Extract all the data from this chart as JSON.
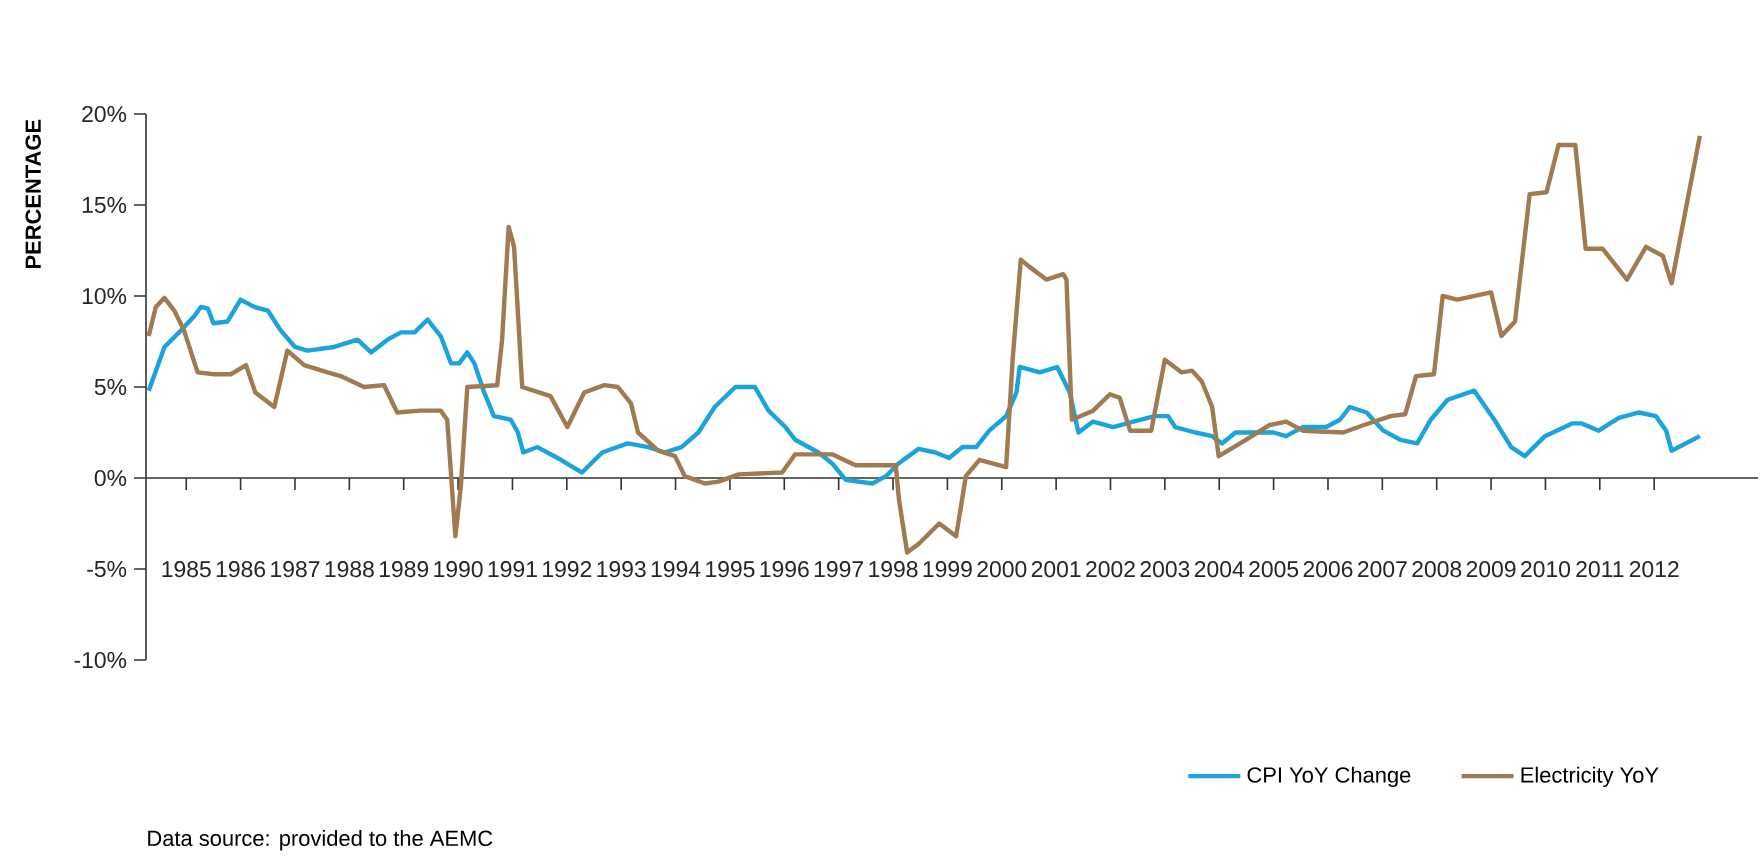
{
  "chart_data": {
    "type": "line",
    "ylabel": "PERCENTAGE",
    "xlim": [
      1984.26,
      2013.91
    ],
    "xticks": [
      1985,
      1986,
      1987,
      1988,
      1989,
      1990,
      1991,
      1992,
      1993,
      1994,
      1995,
      1996,
      1997,
      1998,
      1999,
      2000,
      2001,
      2002,
      2003,
      2004,
      2005,
      2006,
      2007,
      2008,
      2009,
      2010,
      2011,
      2012
    ],
    "ylim": [
      -10,
      20
    ],
    "yticks": [
      {
        "value": -10,
        "label": "-10%"
      },
      {
        "value": -5,
        "label": "-5%"
      },
      {
        "value": 0,
        "label": "0%"
      },
      {
        "value": 5,
        "label": "5%"
      },
      {
        "value": 10,
        "label": "10%"
      },
      {
        "value": 15,
        "label": "15%"
      },
      {
        "value": 20,
        "label": "20%"
      }
    ],
    "legend": "bottom right",
    "annotations": [
      "Data source: provided to the AEMC"
    ],
    "series": [
      {
        "name": "CPI YoY Change",
        "color": "#1ba3dc",
        "x": [
          1984.31,
          1984.6,
          1984.9,
          1985.15,
          1985.27,
          1985.4,
          1985.5,
          1985.76,
          1986.0,
          1986.25,
          1986.5,
          1986.74,
          1987.0,
          1987.23,
          1987.72,
          1988.15,
          1988.4,
          1988.7,
          1988.95,
          1989.2,
          1989.44,
          1989.68,
          1989.87,
          1990.02,
          1990.17,
          1990.3,
          1990.48,
          1990.66,
          1990.97,
          1991.1,
          1991.2,
          1991.46,
          1991.89,
          1992.28,
          1992.65,
          1993.12,
          1993.5,
          1993.8,
          1994.11,
          1994.42,
          1994.72,
          1995.1,
          1995.46,
          1995.71,
          1996.02,
          1996.2,
          1996.63,
          1996.88,
          1997.13,
          1997.62,
          1997.87,
          1998.1,
          1998.47,
          1998.78,
          1999.03,
          1999.28,
          1999.53,
          1999.77,
          2000.08,
          2000.27,
          2000.33,
          2000.7,
          2001.02,
          2001.25,
          2001.41,
          2001.68,
          2002.05,
          2002.42,
          2002.81,
          2003.06,
          2003.19,
          2003.56,
          2003.87,
          2004.05,
          2004.3,
          2004.67,
          2005.0,
          2005.23,
          2005.54,
          2005.97,
          2006.22,
          2006.4,
          2006.71,
          2007.02,
          2007.33,
          2007.64,
          2007.89,
          2008.2,
          2008.69,
          2009.06,
          2009.37,
          2009.62,
          2009.99,
          2010.49,
          2010.67,
          2010.98,
          2011.35,
          2011.72,
          2012.03,
          2012.22,
          2012.32,
          2012.84
        ],
        "values": [
          4.8,
          7.2,
          8.1,
          8.9,
          9.4,
          9.3,
          8.5,
          8.6,
          9.8,
          9.4,
          9.2,
          8.1,
          7.2,
          7.0,
          7.2,
          7.6,
          6.9,
          7.6,
          8.0,
          8.0,
          8.7,
          7.8,
          6.3,
          6.3,
          6.9,
          6.3,
          4.7,
          3.4,
          3.2,
          2.5,
          1.4,
          1.7,
          1.0,
          0.3,
          1.4,
          1.9,
          1.7,
          1.4,
          1.7,
          2.5,
          3.9,
          5.0,
          5.0,
          3.7,
          2.8,
          2.1,
          1.4,
          0.8,
          -0.1,
          -0.3,
          0.1,
          0.8,
          1.6,
          1.4,
          1.1,
          1.7,
          1.7,
          2.6,
          3.4,
          4.7,
          6.1,
          5.8,
          6.1,
          4.7,
          2.5,
          3.1,
          2.8,
          3.1,
          3.4,
          3.4,
          2.8,
          2.5,
          2.3,
          1.9,
          2.5,
          2.5,
          2.5,
          2.3,
          2.8,
          2.8,
          3.2,
          3.9,
          3.6,
          2.6,
          2.1,
          1.9,
          3.2,
          4.3,
          4.8,
          3.2,
          1.7,
          1.2,
          2.3,
          3.0,
          3.0,
          2.6,
          3.3,
          3.6,
          3.4,
          2.6,
          1.5,
          2.3
        ]
      },
      {
        "name": "Electricity YoY",
        "color": "#a07a50",
        "x": [
          1984.31,
          1984.44,
          1984.6,
          1984.78,
          1984.96,
          1985.21,
          1985.51,
          1985.82,
          1986.1,
          1986.27,
          1986.62,
          1986.86,
          1987.17,
          1987.6,
          1987.84,
          1988.27,
          1988.64,
          1988.88,
          1989.31,
          1989.68,
          1989.8,
          1989.95,
          1990.05,
          1990.17,
          1990.72,
          1990.81,
          1990.93,
          1991.03,
          1991.18,
          1991.7,
          1992.01,
          1992.32,
          1992.69,
          1992.94,
          1993.18,
          1993.31,
          1993.68,
          1993.99,
          1994.17,
          1994.54,
          1994.79,
          1995.16,
          1995.96,
          1996.2,
          1996.88,
          1997.31,
          1998.05,
          1998.11,
          1998.26,
          1998.48,
          1998.85,
          1999.16,
          1999.34,
          1999.59,
          2000.08,
          2000.2,
          2000.35,
          2000.51,
          2000.82,
          2001.13,
          2001.19,
          2001.29,
          2001.68,
          2001.99,
          2002.17,
          2002.36,
          2002.75,
          2003.0,
          2003.31,
          2003.5,
          2003.68,
          2003.87,
          2003.99,
          2004.49,
          2004.92,
          2005.23,
          2005.54,
          2006.28,
          2006.65,
          2007.15,
          2007.42,
          2007.62,
          2007.95,
          2008.11,
          2008.38,
          2009.0,
          2009.19,
          2009.44,
          2009.71,
          2010.02,
          2010.24,
          2010.55,
          2010.74,
          2011.05,
          2011.5,
          2011.85,
          2012.16,
          2012.32,
          2012.84
        ],
        "values": [
          7.8,
          9.4,
          9.9,
          9.2,
          8.1,
          5.8,
          5.7,
          5.7,
          6.2,
          4.7,
          3.9,
          7.0,
          6.2,
          5.8,
          5.6,
          5.0,
          5.1,
          3.6,
          3.7,
          3.7,
          3.2,
          -3.2,
          -0.5,
          5.0,
          5.1,
          7.6,
          13.8,
          12.7,
          5.0,
          4.5,
          2.8,
          4.7,
          5.1,
          5.0,
          4.1,
          2.5,
          1.5,
          1.2,
          0.1,
          -0.3,
          -0.2,
          0.2,
          0.3,
          1.3,
          1.3,
          0.7,
          0.7,
          -1.2,
          -4.1,
          -3.6,
          -2.5,
          -3.2,
          0.1,
          1.0,
          0.6,
          6.5,
          12.0,
          11.6,
          10.9,
          11.2,
          10.9,
          3.2,
          3.7,
          4.6,
          4.4,
          2.6,
          2.6,
          6.5,
          5.8,
          5.9,
          5.3,
          3.9,
          1.2,
          2.1,
          2.9,
          3.1,
          2.6,
          2.5,
          2.9,
          3.4,
          3.5,
          5.6,
          5.7,
          10.0,
          9.8,
          10.2,
          7.8,
          8.6,
          15.6,
          15.7,
          18.3,
          18.3,
          12.6,
          12.6,
          10.9,
          12.7,
          12.2,
          10.7,
          18.8
        ]
      }
    ]
  }
}
